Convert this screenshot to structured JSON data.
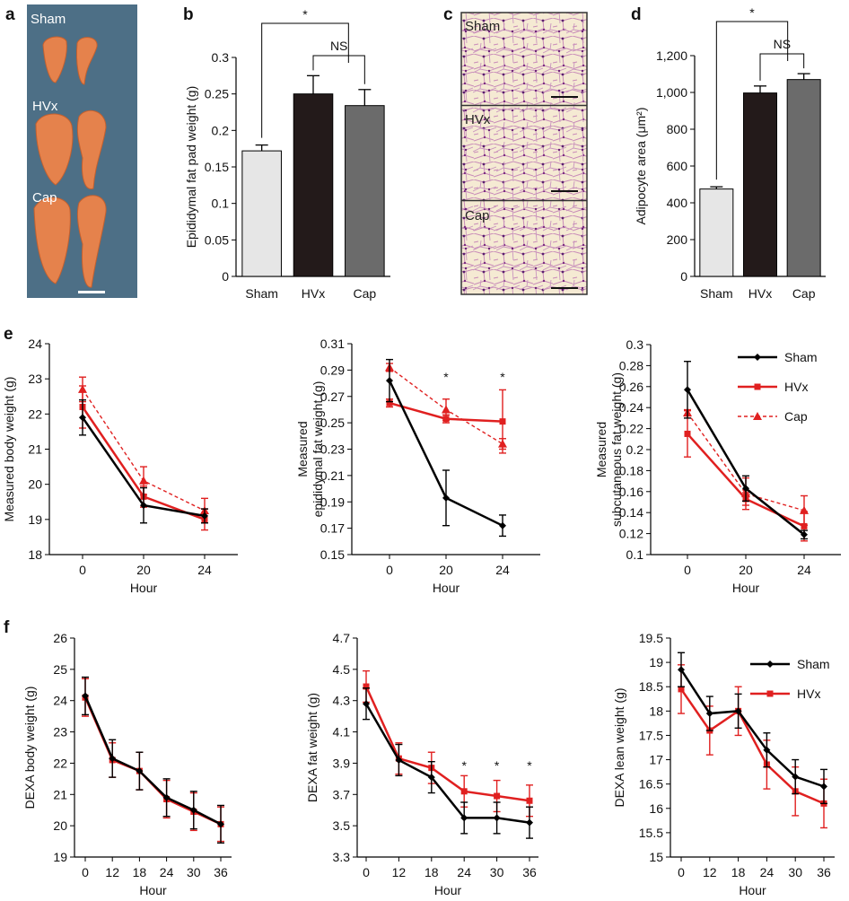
{
  "panel_labels": {
    "a": "a",
    "b": "b",
    "c": "c",
    "d": "d",
    "e": "e",
    "f": "f"
  },
  "panel_a": {
    "labels": [
      "Sham",
      "HVx",
      "Cap"
    ]
  },
  "panel_c": {
    "labels": [
      "Sham",
      "HVx",
      "Cap"
    ]
  },
  "colors": {
    "sham_bar": "#e6e6e6",
    "hvx_bar": "#231a1a",
    "cap_bar": "#6b6b6b",
    "sham_line": "#000000",
    "hvx_line": "#e02020",
    "cap_line": "#e02020",
    "photo_bg": "#4d6f86",
    "micro_bg": "#f3e7cf",
    "micro_stain": "#b0338a"
  },
  "chart_data": [
    {
      "id": "b",
      "type": "bar",
      "title": "",
      "xlabel": "",
      "ylabel": "Epididymal fat pad weight (g)",
      "categories": [
        "Sham",
        "HVx",
        "Cap"
      ],
      "values": [
        0.172,
        0.25,
        0.234
      ],
      "errors": [
        0.008,
        0.025,
        0.022
      ],
      "ylim": [
        0,
        0.3
      ],
      "yticks": [
        "0",
        "0.05",
        "0.1",
        "0.15",
        "0.2",
        "0.25",
        "0.3"
      ],
      "annotations": [
        "*",
        "NS"
      ]
    },
    {
      "id": "d",
      "type": "bar",
      "title": "",
      "xlabel": "",
      "ylabel": "Adipocyte area (μm²)",
      "categories": [
        "Sham",
        "HVx",
        "Cap"
      ],
      "values": [
        475,
        997,
        1070
      ],
      "errors": [
        12,
        38,
        32
      ],
      "ylim": [
        0,
        1200
      ],
      "yticks": [
        "0",
        "200",
        "400",
        "600",
        "800",
        "1,000",
        "1,200"
      ],
      "annotations": [
        "*",
        "NS"
      ]
    },
    {
      "id": "e1",
      "type": "line",
      "xlabel": "Hour",
      "ylabel": "Measured body weight (g)",
      "x": [
        "0",
        "20",
        "24"
      ],
      "ylim": [
        18,
        24
      ],
      "yticks": [
        "18",
        "19",
        "20",
        "21",
        "22",
        "23",
        "24"
      ],
      "series": [
        {
          "name": "Sham",
          "values": [
            21.9,
            19.4,
            19.1
          ],
          "errors": [
            0.5,
            0.5,
            0.2
          ]
        },
        {
          "name": "HVx",
          "values": [
            22.2,
            19.65,
            19.0
          ],
          "errors": [
            0.6,
            0.3,
            0.3
          ]
        },
        {
          "name": "Cap",
          "values": [
            22.7,
            20.1,
            19.25
          ],
          "errors": [
            0.35,
            0.4,
            0.35
          ]
        }
      ]
    },
    {
      "id": "e2",
      "type": "line",
      "xlabel": "Hour",
      "ylabel": "Measured epididymal fat weight (g)",
      "x": [
        "0",
        "20",
        "24"
      ],
      "ylim": [
        0.15,
        0.31
      ],
      "yticks": [
        "0.15",
        "0.17",
        "0.19",
        "0.21",
        "0.23",
        "0.25",
        "0.27",
        "0.29",
        "0.31"
      ],
      "series": [
        {
          "name": "Sham",
          "values": [
            0.282,
            0.193,
            0.172
          ],
          "errors": [
            0.016,
            0.021,
            0.008
          ]
        },
        {
          "name": "HVx",
          "values": [
            0.265,
            0.253,
            0.251
          ],
          "errors": [
            0.003,
            0.003,
            0.024
          ]
        },
        {
          "name": "Cap",
          "values": [
            0.292,
            0.26,
            0.234
          ],
          "errors": [
            0.003,
            0.008,
            0.004
          ]
        }
      ],
      "annotations": [
        "*",
        "*"
      ]
    },
    {
      "id": "e3",
      "type": "line",
      "xlabel": "Hour",
      "ylabel": "Measured subcutaneous fat weight (g)",
      "x": [
        "0",
        "20",
        "24"
      ],
      "ylim": [
        0.1,
        0.3
      ],
      "yticks": [
        "0.1",
        "0.12",
        "0.14",
        "0.16",
        "0.18",
        "0.2",
        "0.22",
        "0.24",
        "0.26",
        "0.28",
        "0.3"
      ],
      "series": [
        {
          "name": "Sham",
          "values": [
            0.257,
            0.163,
            0.119
          ],
          "errors": [
            0.027,
            0.012,
            0.004
          ]
        },
        {
          "name": "HVx",
          "values": [
            0.215,
            0.153,
            0.127
          ],
          "errors": [
            0.022,
            0.006,
            0.014
          ]
        },
        {
          "name": "Cap",
          "values": [
            0.235,
            0.158,
            0.142
          ],
          "errors": [
            0.003,
            0.015,
            0.014
          ]
        }
      ],
      "legend": [
        "Sham",
        "HVx",
        "Cap"
      ]
    },
    {
      "id": "f1",
      "type": "line",
      "xlabel": "Hour",
      "ylabel": "DEXA body weight (g)",
      "x": [
        "0",
        "12",
        "18",
        "24",
        "30",
        "36"
      ],
      "ylim": [
        19,
        26
      ],
      "yticks": [
        "19",
        "20",
        "21",
        "22",
        "23",
        "24",
        "25",
        "26"
      ],
      "series": [
        {
          "name": "Sham",
          "values": [
            24.15,
            22.15,
            21.75,
            20.9,
            20.5,
            20.05
          ],
          "errors": [
            0.6,
            0.6,
            0.6,
            0.6,
            0.6,
            0.6
          ]
        },
        {
          "name": "HVx",
          "values": [
            24.1,
            22.1,
            21.75,
            20.85,
            20.45,
            20.05
          ],
          "errors": [
            0.6,
            0.55,
            0.6,
            0.6,
            0.6,
            0.55
          ]
        }
      ]
    },
    {
      "id": "f2",
      "type": "line",
      "xlabel": "Hour",
      "ylabel": "DEXA fat weight (g)",
      "x": [
        "0",
        "12",
        "18",
        "24",
        "30",
        "36"
      ],
      "ylim": [
        3.3,
        4.7
      ],
      "yticks": [
        "3.3",
        "3.5",
        "3.7",
        "3.9",
        "4.1",
        "4.3",
        "4.5",
        "4.7"
      ],
      "series": [
        {
          "name": "Sham",
          "values": [
            4.28,
            3.92,
            3.81,
            3.55,
            3.55,
            3.52
          ],
          "errors": [
            0.1,
            0.1,
            0.1,
            0.1,
            0.1,
            0.1
          ]
        },
        {
          "name": "HVx",
          "values": [
            4.39,
            3.93,
            3.87,
            3.72,
            3.69,
            3.66
          ],
          "errors": [
            0.1,
            0.1,
            0.1,
            0.1,
            0.1,
            0.1
          ]
        }
      ],
      "annotations": [
        "*",
        "*",
        "*"
      ]
    },
    {
      "id": "f3",
      "type": "line",
      "xlabel": "Hour",
      "ylabel": "DEXA lean weight (g)",
      "x": [
        "0",
        "12",
        "18",
        "24",
        "30",
        "36"
      ],
      "ylim": [
        15,
        19.5
      ],
      "yticks": [
        "15",
        "15.5",
        "16",
        "16.5",
        "17",
        "17.5",
        "18",
        "18.5",
        "19",
        "19.5"
      ],
      "series": [
        {
          "name": "Sham",
          "values": [
            18.85,
            17.95,
            18.0,
            17.2,
            16.65,
            16.45
          ],
          "errors": [
            0.35,
            0.35,
            0.35,
            0.35,
            0.35,
            0.35
          ]
        },
        {
          "name": "HVx",
          "values": [
            18.45,
            17.6,
            18.0,
            16.9,
            16.35,
            16.1
          ],
          "errors": [
            0.5,
            0.5,
            0.5,
            0.5,
            0.5,
            0.5
          ]
        }
      ],
      "legend": [
        "Sham",
        "HVx"
      ]
    }
  ]
}
